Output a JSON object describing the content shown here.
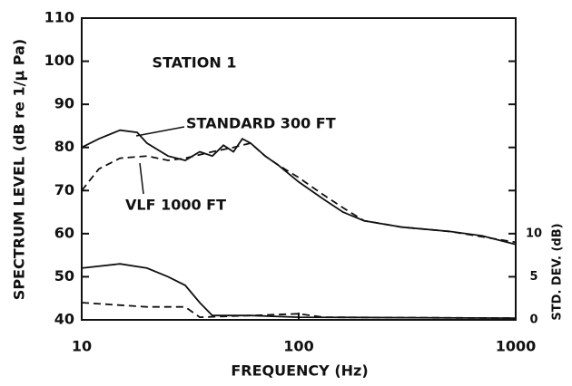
{
  "chart_data": {
    "type": "line",
    "annotations": [
      "STATION 1",
      "STANDARD 300 FT",
      "VLF 1000 FT"
    ],
    "xlabel": "FREQUENCY (Hz)",
    "ylabel": "SPECTRUM LEVEL (dB re 1/μ Pa)",
    "y2label": "STD. DEV. (dB)",
    "xscale": "log",
    "xlim": [
      10,
      1000
    ],
    "xticks": [
      10,
      100,
      1000
    ],
    "ylim": [
      40,
      110
    ],
    "yticks": [
      40,
      50,
      60,
      70,
      80,
      90,
      100,
      110
    ],
    "y2lim": [
      0,
      35
    ],
    "y2ticks": [
      0,
      5,
      10
    ],
    "series": [
      {
        "name": "STANDARD 300 FT",
        "color": "#111111",
        "style": "solid",
        "x": [
          10,
          12,
          15,
          18,
          20,
          25,
          30,
          35,
          40,
          45,
          50,
          55,
          60,
          70,
          80,
          100,
          130,
          160,
          200,
          300,
          500,
          700,
          1000
        ],
        "values": [
          80,
          82,
          84,
          83.5,
          81,
          78,
          77,
          79,
          78,
          80.5,
          79,
          82,
          81,
          78,
          76,
          72,
          68,
          65,
          63,
          61.5,
          60.5,
          59.5,
          57.5
        ]
      },
      {
        "name": "VLF 1000 FT",
        "color": "#111111",
        "style": "dashed",
        "x": [
          10,
          12,
          15,
          20,
          25,
          30,
          40,
          50,
          60,
          70,
          80,
          100,
          130,
          160,
          200,
          300,
          500,
          1000
        ],
        "values": [
          70,
          75,
          77.5,
          78,
          77,
          77.5,
          79,
          80,
          81,
          78,
          76,
          73,
          69,
          66,
          63,
          61.5,
          60.5,
          58
        ]
      },
      {
        "color": "#111111",
        "style": "solid",
        "axis": "y2",
        "x": [
          10,
          15,
          20,
          25,
          30,
          35,
          40,
          60,
          100,
          1000
        ],
        "values": [
          6,
          6.5,
          6,
          5,
          4,
          2,
          0.5,
          0.5,
          0.3,
          0.2
        ]
      },
      {
        "color": "#111111",
        "style": "dashed",
        "axis": "y2",
        "x": [
          10,
          20,
          30,
          35,
          60,
          100,
          130,
          1000
        ],
        "values": [
          2,
          1.5,
          1.5,
          0.3,
          0.5,
          0.7,
          0.3,
          0.2
        ]
      }
    ]
  }
}
